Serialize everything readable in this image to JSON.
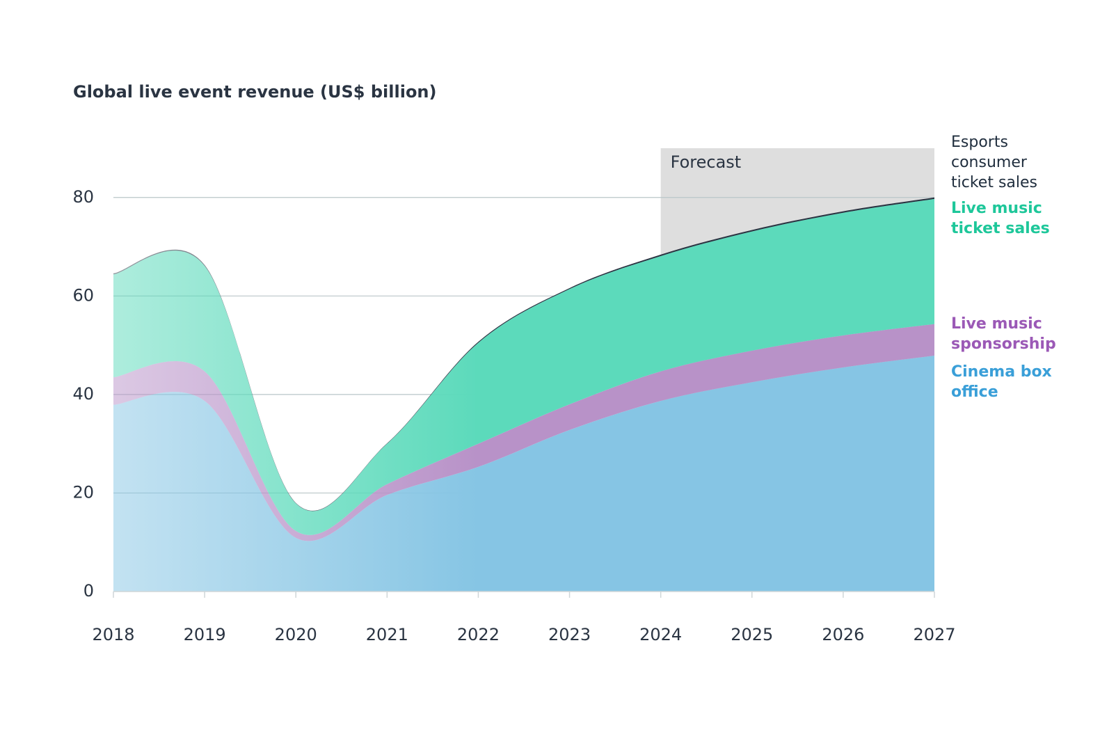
{
  "chart_data": {
    "type": "stacked_area",
    "title": "Global live event revenue (US$ billion)",
    "x": [
      2018,
      2019,
      2020,
      2021,
      2022,
      2023,
      2024,
      2025,
      2026,
      2027
    ],
    "xlim": [
      2018,
      2027
    ],
    "xticks": [
      2018,
      2019,
      2020,
      2021,
      2022,
      2023,
      2024,
      2025,
      2026,
      2027
    ],
    "ylim": [
      0,
      90
    ],
    "yticks": [
      0,
      20,
      40,
      60,
      80
    ],
    "grid": true,
    "shaded_region": {
      "label": "Forecast",
      "x": [
        2024,
        2027
      ]
    },
    "series": [
      {
        "name": "Cinema box office",
        "color": "#86c5e4",
        "label_color": "#3a9fd8",
        "values": [
          37.9,
          38.7,
          10.9,
          19.6,
          25.3,
          32.8,
          38.7,
          42.5,
          45.5,
          47.9
        ]
      },
      {
        "name": "Live music sponsorship",
        "color": "#b892c8",
        "label_color": "#9b59b6",
        "values": [
          5.6,
          6.0,
          1.4,
          2.2,
          4.7,
          5.2,
          6.0,
          6.4,
          6.5,
          6.4
        ]
      },
      {
        "name": "Live music ticket sales",
        "color": "#5cdabb",
        "label_color": "#1ec79a",
        "values": [
          20.9,
          21.4,
          5.6,
          8.2,
          20.5,
          23.4,
          23.4,
          24.2,
          24.9,
          25.4
        ]
      },
      {
        "name": "Esports consumer ticket sales",
        "color": "#2a3442",
        "label_color": "#1f2d3d",
        "values": [
          0.2,
          0.2,
          0.1,
          0.1,
          0.2,
          0.2,
          0.3,
          0.3,
          0.3,
          0.3
        ]
      }
    ]
  }
}
